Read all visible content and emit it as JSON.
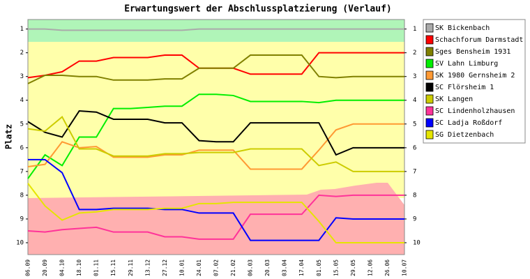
{
  "chart_data": {
    "type": "line",
    "title": "Erwartungswert der Abschlussplatzierung (Verlauf)",
    "y_label": "Platz",
    "categories": [
      "06.09",
      "20.09",
      "04.10",
      "18.10",
      "01.11",
      "15.11",
      "29.11",
      "13.12",
      "27.12",
      "10.01",
      "24.01",
      "07.02",
      "21.02",
      "06.03",
      "20.03",
      "03.04",
      "17.04",
      "01.05",
      "15.05",
      "29.05",
      "12.06",
      "26.06",
      "10.07"
    ],
    "ylim": [
      0.6,
      10.5
    ],
    "y_inverted": true,
    "yticks": [
      1,
      2,
      3,
      4,
      5,
      6,
      7,
      8,
      9,
      10
    ],
    "series": [
      {
        "name": "SK Bickenbach",
        "color": "#aaaaaa",
        "values": [
          1,
          1,
          1.05,
          1.05,
          1.05,
          1.05,
          1.05,
          1.05,
          1.05,
          1.05,
          1,
          1,
          1,
          1,
          1,
          1,
          1,
          1,
          1,
          1,
          1,
          1,
          1
        ]
      },
      {
        "name": "Schachforum Darmstadt",
        "color": "#ff0000",
        "values": [
          3.05,
          2.95,
          2.8,
          2.35,
          2.35,
          2.2,
          2.2,
          2.2,
          2.1,
          2.1,
          2.65,
          2.65,
          2.65,
          2.9,
          2.9,
          2.9,
          2.9,
          2,
          2,
          2,
          2,
          2,
          2
        ]
      },
      {
        "name": "Sges Bensheim 1931",
        "color": "#808000",
        "values": [
          3.3,
          2.95,
          2.95,
          3,
          3,
          3.15,
          3.15,
          3.15,
          3.1,
          3.1,
          2.65,
          2.65,
          2.65,
          2.1,
          2.1,
          2.1,
          2.1,
          3,
          3.05,
          3,
          3,
          3,
          3
        ]
      },
      {
        "name": "SV Lahn Limburg",
        "color": "#00ee00",
        "values": [
          7.3,
          6.3,
          6.75,
          5.55,
          5.55,
          4.35,
          4.35,
          4.3,
          4.25,
          4.25,
          3.75,
          3.75,
          3.8,
          4.05,
          4.05,
          4.05,
          4.05,
          4.1,
          4,
          4,
          4,
          4,
          4
        ]
      },
      {
        "name": "SK 1980 Gernsheim 2",
        "color": "#ff9933",
        "values": [
          6.8,
          6.7,
          5.75,
          6,
          5.95,
          6.4,
          6.4,
          6.4,
          6.3,
          6.3,
          6.1,
          6.1,
          6.1,
          6.9,
          6.9,
          6.9,
          6.9,
          6.1,
          5.25,
          5,
          5,
          5,
          5
        ]
      },
      {
        "name": "SC Flörsheim 1",
        "color": "#000000",
        "values": [
          4.9,
          5.35,
          5.55,
          4.45,
          4.5,
          4.8,
          4.8,
          4.8,
          4.95,
          4.95,
          5.7,
          5.75,
          5.75,
          4.95,
          4.95,
          4.95,
          4.95,
          4.95,
          6.3,
          6,
          6,
          6,
          6
        ]
      },
      {
        "name": "SK Langen",
        "color": "#cccc00",
        "values": [
          5.2,
          5.3,
          4.7,
          6.05,
          6.05,
          6.35,
          6.35,
          6.35,
          6.25,
          6.25,
          6.2,
          6.2,
          6.2,
          6.05,
          6.05,
          6.05,
          6.05,
          6.75,
          6.6,
          7,
          7,
          7,
          7
        ]
      },
      {
        "name": "SC Lindenholzhausen",
        "color": "#ff3399",
        "values": [
          9.5,
          9.55,
          9.45,
          9.4,
          9.35,
          9.55,
          9.55,
          9.55,
          9.75,
          9.75,
          9.85,
          9.85,
          9.85,
          8.8,
          8.8,
          8.8,
          8.8,
          8,
          8.05,
          8,
          8,
          8,
          8
        ]
      },
      {
        "name": "SC Ladja Roßdorf",
        "color": "#0000ff",
        "values": [
          6.5,
          6.5,
          7.05,
          8.6,
          8.6,
          8.55,
          8.55,
          8.55,
          8.6,
          8.6,
          8.75,
          8.75,
          8.75,
          9.9,
          9.9,
          9.9,
          9.9,
          9.9,
          8.95,
          9,
          9,
          9,
          9
        ]
      },
      {
        "name": "SG Dietzenbach",
        "color": "#e5e500",
        "values": [
          7.5,
          8.45,
          9.05,
          8.75,
          8.7,
          8.6,
          8.6,
          8.6,
          8.55,
          8.55,
          8.35,
          8.35,
          8.3,
          8.3,
          8.3,
          8.3,
          8.3,
          9.1,
          10,
          10,
          10,
          10,
          10
        ]
      }
    ]
  }
}
